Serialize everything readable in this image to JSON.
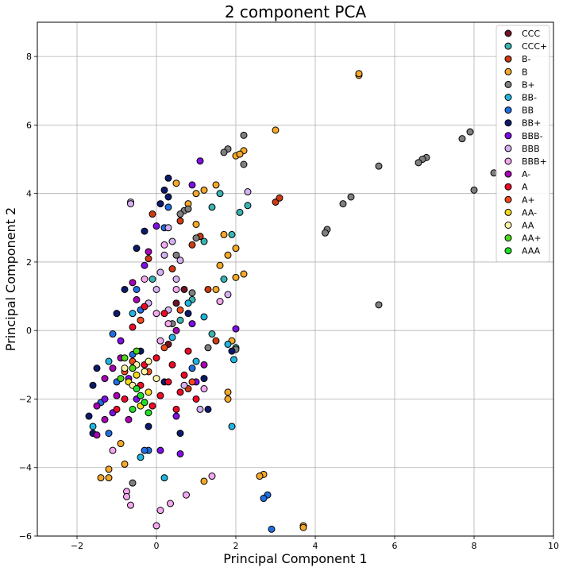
{
  "chart_data": {
    "type": "scatter",
    "title": "2 component PCA",
    "xlabel": "Principal Component 1",
    "ylabel": "Principal Component 2",
    "xlim": [
      -3,
      10
    ],
    "ylim": [
      -6,
      9
    ],
    "xticks": [
      -2,
      0,
      2,
      4,
      6,
      8,
      10
    ],
    "yticks": [
      -6,
      -4,
      -2,
      0,
      2,
      4,
      6,
      8
    ],
    "grid": true,
    "legend_position": "top-right",
    "series": [
      {
        "name": "CCC",
        "color": "#6e1423",
        "points": [
          [
            0.5,
            0.8
          ],
          [
            0.7,
            1.2
          ],
          [
            0.3,
            -0.4
          ]
        ]
      },
      {
        "name": "CCC+",
        "color": "#3bb3b3",
        "points": [
          [
            1.4,
            3.6
          ],
          [
            1.6,
            4.0
          ],
          [
            2.1,
            3.45
          ],
          [
            2.3,
            3.65
          ],
          [
            1.2,
            2.6
          ],
          [
            1.9,
            2.8
          ],
          [
            0.9,
            0.9
          ],
          [
            1.4,
            -0.1
          ],
          [
            0.6,
            0.3
          ],
          [
            -0.1,
            1.5
          ],
          [
            2.0,
            -0.5
          ],
          [
            1.7,
            1.5
          ]
        ]
      },
      {
        "name": "B-",
        "color": "#cc3b12",
        "points": [
          [
            3.0,
            3.75
          ],
          [
            3.1,
            3.87
          ],
          [
            0.9,
            2.5
          ],
          [
            1.1,
            2.75
          ],
          [
            0.6,
            3.2
          ],
          [
            0.4,
            1.8
          ],
          [
            -0.2,
            2.1
          ],
          [
            1.3,
            1.2
          ],
          [
            -0.1,
            3.4
          ],
          [
            1.5,
            -0.3
          ],
          [
            0.8,
            -1.7
          ]
        ]
      },
      {
        "name": "B",
        "color": "#f6a828",
        "points": [
          [
            5.1,
            7.45
          ],
          [
            5.1,
            7.5
          ],
          [
            3.0,
            5.85
          ],
          [
            2.2,
            5.25
          ],
          [
            2.0,
            5.1
          ],
          [
            2.1,
            5.15
          ],
          [
            1.0,
            4.0
          ],
          [
            1.2,
            4.1
          ],
          [
            1.5,
            4.25
          ],
          [
            1.7,
            2.8
          ],
          [
            2.0,
            2.4
          ],
          [
            2.2,
            1.65
          ],
          [
            2.0,
            1.55
          ],
          [
            1.8,
            2.2
          ],
          [
            1.5,
            1.2
          ],
          [
            1.9,
            -0.3
          ],
          [
            1.8,
            -1.8
          ],
          [
            1.8,
            -2.0
          ],
          [
            2.7,
            -4.2
          ],
          [
            2.6,
            -4.25
          ],
          [
            3.7,
            -5.7
          ],
          [
            3.7,
            -5.75
          ],
          [
            1.2,
            -4.4
          ],
          [
            -1.4,
            -4.3
          ],
          [
            -1.2,
            -4.3
          ],
          [
            -1.2,
            -4.05
          ],
          [
            -0.8,
            -3.9
          ],
          [
            -0.9,
            -3.3
          ],
          [
            0.5,
            4.3
          ],
          [
            0.8,
            3.7
          ],
          [
            1.0,
            3.1
          ],
          [
            1.6,
            1.9
          ]
        ]
      },
      {
        "name": "B+",
        "color": "#7f7f7f",
        "points": [
          [
            7.9,
            5.8
          ],
          [
            7.7,
            5.6
          ],
          [
            6.8,
            5.05
          ],
          [
            6.7,
            5.0
          ],
          [
            6.6,
            4.9
          ],
          [
            5.6,
            4.8
          ],
          [
            8.5,
            4.6
          ],
          [
            8.0,
            4.1
          ],
          [
            4.9,
            3.9
          ],
          [
            4.7,
            3.7
          ],
          [
            4.3,
            2.95
          ],
          [
            4.25,
            2.85
          ],
          [
            5.6,
            0.75
          ],
          [
            2.2,
            5.7
          ],
          [
            1.8,
            5.3
          ],
          [
            1.7,
            5.2
          ],
          [
            2.2,
            4.85
          ],
          [
            0.7,
            3.5
          ],
          [
            0.8,
            3.55
          ],
          [
            0.6,
            3.4
          ],
          [
            1.0,
            2.7
          ],
          [
            0.5,
            2.2
          ],
          [
            1.3,
            -0.5
          ],
          [
            2.0,
            -0.55
          ],
          [
            -0.6,
            -4.45
          ],
          [
            0.9,
            1.1
          ],
          [
            0.4,
            0.2
          ]
        ]
      },
      {
        "name": "BB-",
        "color": "#1fb5e0",
        "points": [
          [
            1.95,
            -0.85
          ],
          [
            1.9,
            -2.8
          ],
          [
            0.2,
            -4.3
          ],
          [
            -0.4,
            -3.7
          ],
          [
            -1.6,
            -2.8
          ],
          [
            -1.2,
            -0.9
          ],
          [
            1.8,
            -0.4
          ],
          [
            1.2,
            0.4
          ],
          [
            0.8,
            0.8
          ],
          [
            -0.6,
            0.5
          ],
          [
            0.4,
            -0.2
          ],
          [
            1.0,
            -0.9
          ]
        ]
      },
      {
        "name": "BB",
        "color": "#1f6fe0",
        "points": [
          [
            2.9,
            -5.8
          ],
          [
            2.8,
            -4.8
          ],
          [
            2.7,
            -4.9
          ],
          [
            -0.2,
            -3.5
          ],
          [
            -0.3,
            -3.5
          ],
          [
            -1.2,
            -3.0
          ],
          [
            -0.6,
            -0.7
          ],
          [
            -1.1,
            -0.1
          ],
          [
            -0.5,
            1.2
          ],
          [
            0.2,
            3.0
          ],
          [
            0.3,
            3.6
          ],
          [
            -0.4,
            0.6
          ],
          [
            0.9,
            -1.1
          ],
          [
            -1.0,
            -1.5
          ],
          [
            -1.4,
            -2.1
          ]
        ]
      },
      {
        "name": "BB+",
        "color": "#0b1a6b",
        "points": [
          [
            0.3,
            4.45
          ],
          [
            0.2,
            4.1
          ],
          [
            0.3,
            3.9
          ],
          [
            0.1,
            3.7
          ],
          [
            -0.3,
            2.9
          ],
          [
            -0.5,
            2.4
          ],
          [
            -0.8,
            1.2
          ],
          [
            -1.0,
            0.5
          ],
          [
            -1.5,
            -1.1
          ],
          [
            -1.6,
            -1.6
          ],
          [
            -1.7,
            -2.5
          ],
          [
            -1.6,
            -3.0
          ],
          [
            -0.2,
            -2.8
          ],
          [
            0.6,
            -3.0
          ],
          [
            0.2,
            -1.5
          ],
          [
            1.3,
            -2.3
          ],
          [
            1.2,
            -1.4
          ],
          [
            0.8,
            0.5
          ],
          [
            -0.4,
            -0.6
          ],
          [
            1.9,
            -0.6
          ]
        ]
      },
      {
        "name": "BBB-",
        "color": "#7d0ee6",
        "points": [
          [
            1.1,
            4.95
          ],
          [
            0.9,
            4.25
          ],
          [
            0.6,
            -3.6
          ],
          [
            0.1,
            -3.5
          ],
          [
            -1.1,
            -2.4
          ],
          [
            -0.7,
            -1.4
          ],
          [
            -0.9,
            -0.3
          ],
          [
            -0.3,
            1.9
          ],
          [
            0.0,
            3.05
          ],
          [
            0.5,
            -2.5
          ],
          [
            1.0,
            -1.5
          ],
          [
            -0.5,
            -2.0
          ],
          [
            2.0,
            0.05
          ],
          [
            0.9,
            0.2
          ],
          [
            -1.3,
            -2.0
          ]
        ]
      },
      {
        "name": "BBB",
        "color": "#d6b0f3",
        "points": [
          [
            2.3,
            4.05
          ],
          [
            -0.65,
            3.75
          ],
          [
            -0.65,
            3.7
          ],
          [
            0.2,
            2.2
          ],
          [
            0.1,
            1.7
          ],
          [
            0.4,
            2.6
          ],
          [
            0.6,
            2.05
          ],
          [
            0.0,
            1.2
          ],
          [
            0.3,
            0.6
          ],
          [
            0.7,
            -1.6
          ],
          [
            1.1,
            -2.3
          ],
          [
            1.8,
            1.05
          ],
          [
            0.3,
            3.0
          ],
          [
            -0.2,
            0.8
          ],
          [
            0.5,
            1.5
          ]
        ]
      },
      {
        "name": "BBB+",
        "color": "#f4a8f0",
        "points": [
          [
            -0.75,
            -4.7
          ],
          [
            -0.75,
            -4.85
          ],
          [
            -0.65,
            -5.1
          ],
          [
            0.0,
            -5.7
          ],
          [
            0.1,
            -5.25
          ],
          [
            0.35,
            -5.05
          ],
          [
            0.75,
            -4.8
          ],
          [
            1.4,
            -4.25
          ],
          [
            -1.1,
            -3.5
          ],
          [
            0.0,
            0.5
          ],
          [
            0.3,
            0.2
          ],
          [
            0.1,
            -0.3
          ],
          [
            0.5,
            1.2
          ],
          [
            0.2,
            2.5
          ],
          [
            -0.3,
            1.5
          ],
          [
            1.6,
            0.85
          ],
          [
            1.2,
            -1.7
          ]
        ]
      },
      {
        "name": "A-",
        "color": "#a800b4",
        "points": [
          [
            -1.5,
            -3.05
          ],
          [
            -1.3,
            -2.6
          ],
          [
            -1.0,
            -1.9
          ],
          [
            -1.3,
            -1.4
          ],
          [
            -1.1,
            -1.1
          ],
          [
            -0.9,
            -0.8
          ],
          [
            -0.5,
            0.9
          ],
          [
            -0.6,
            1.4
          ],
          [
            -0.2,
            2.3
          ],
          [
            -0.4,
            0.3
          ],
          [
            0.5,
            0.0
          ],
          [
            1.2,
            -1.0
          ],
          [
            -1.5,
            -2.2
          ],
          [
            -0.7,
            -2.6
          ]
        ]
      },
      {
        "name": "A",
        "color": "#ee0a26",
        "points": [
          [
            0.1,
            -1.9
          ],
          [
            0.3,
            -1.5
          ],
          [
            0.6,
            -1.8
          ],
          [
            0.7,
            -1.3
          ],
          [
            0.4,
            -1.0
          ],
          [
            0.0,
            -0.8
          ],
          [
            -0.3,
            -1.0
          ],
          [
            -0.4,
            -1.6
          ],
          [
            -0.8,
            -2.0
          ],
          [
            -1.0,
            -2.3
          ],
          [
            -0.6,
            0.1
          ],
          [
            -0.3,
            0.7
          ],
          [
            0.2,
            0.5
          ],
          [
            0.8,
            -0.6
          ],
          [
            1.0,
            -2.0
          ],
          [
            -0.1,
            -2.2
          ],
          [
            0.5,
            -2.3
          ]
        ]
      },
      {
        "name": "A+",
        "color": "#f24a1a",
        "points": [
          [
            -0.6,
            -0.9
          ],
          [
            -0.4,
            0.3
          ],
          [
            0.2,
            -0.5
          ],
          [
            0.6,
            0.6
          ],
          [
            -0.2,
            -1.2
          ],
          [
            0.9,
            -1.5
          ],
          [
            -0.8,
            -1.2
          ]
        ]
      },
      {
        "name": "AA-",
        "color": "#f3d91a",
        "points": [
          [
            -0.7,
            -1.5
          ],
          [
            -0.5,
            -1.3
          ],
          [
            -0.4,
            -2.2
          ],
          [
            -0.2,
            -1.8
          ]
        ]
      },
      {
        "name": "AA",
        "color": "#fff3a8",
        "points": [
          [
            -0.5,
            -1.0
          ],
          [
            -0.3,
            -1.2
          ],
          [
            -0.6,
            -1.6
          ],
          [
            -0.2,
            -0.9
          ],
          [
            0.0,
            -1.4
          ],
          [
            -0.8,
            -1.1
          ]
        ]
      },
      {
        "name": "AA+",
        "color": "#4ed81a",
        "points": [
          [
            -0.8,
            -0.8
          ],
          [
            -0.6,
            -1.1
          ],
          [
            -0.9,
            -1.4
          ],
          [
            -0.5,
            -0.6
          ]
        ]
      },
      {
        "name": "AAA",
        "color": "#1fe026",
        "points": [
          [
            -0.4,
            -1.9
          ],
          [
            -0.3,
            -2.1
          ],
          [
            -0.5,
            -1.7
          ],
          [
            -0.6,
            -2.3
          ],
          [
            -0.2,
            -2.4
          ]
        ]
      }
    ]
  }
}
